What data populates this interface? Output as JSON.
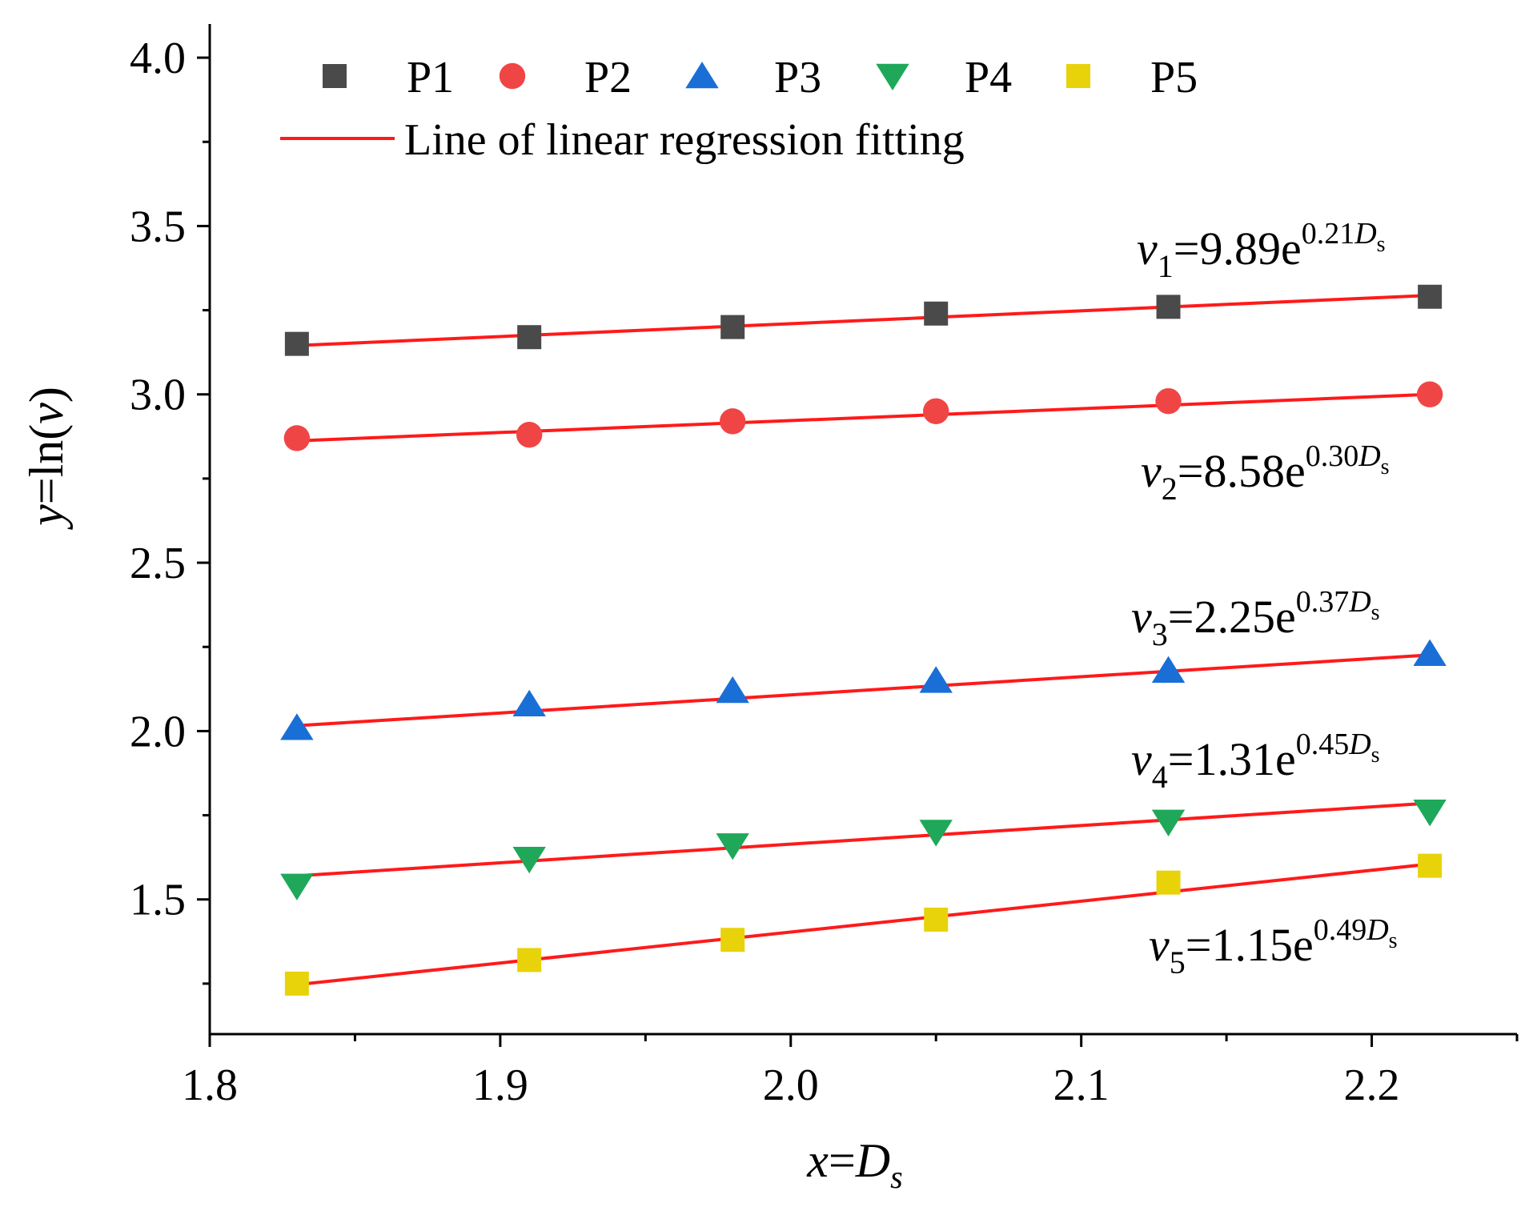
{
  "chart_data": {
    "type": "scatter",
    "title": "",
    "xlabel": {
      "var": "x",
      "eq": "=",
      "sym": "D",
      "sub": "s"
    },
    "ylabel": {
      "var": "y",
      "mid": "=ln(",
      "arg": "v",
      "end": ")"
    },
    "xlim": [
      1.8,
      2.25
    ],
    "ylim": [
      1.1,
      4.1
    ],
    "x_ticks": [
      1.8,
      1.9,
      2.0,
      2.1,
      2.2
    ],
    "x_tick_labels": [
      "1.8",
      "1.9",
      "2.0",
      "2.1",
      "2.2"
    ],
    "y_ticks": [
      1.5,
      2.0,
      2.5,
      3.0,
      3.5,
      4.0
    ],
    "y_tick_labels": [
      "1.5",
      "2.0",
      "2.5",
      "3.0",
      "3.5",
      "4.0"
    ],
    "x": [
      1.83,
      1.91,
      1.98,
      2.05,
      2.13,
      2.22
    ],
    "series": [
      {
        "name": "P1",
        "marker": "square",
        "color": "#4a4a4a",
        "values": [
          3.15,
          3.17,
          3.2,
          3.24,
          3.26,
          3.29
        ],
        "fit": [
          3.145,
          3.294
        ],
        "equation": {
          "v": "v",
          "sub": "1",
          "coef": "=9.89e",
          "exp": "0.21",
          "D": "D",
          "s": "s"
        }
      },
      {
        "name": "P2",
        "marker": "circle",
        "color": "#f04545",
        "values": [
          2.87,
          2.88,
          2.92,
          2.95,
          2.98,
          3.0
        ],
        "fit": [
          2.862,
          3.0
        ],
        "equation": {
          "v": "v",
          "sub": "2",
          "coef": "=8.58e",
          "exp": "0.30",
          "D": "D",
          "s": "s"
        }
      },
      {
        "name": "P3",
        "marker": "triangle-up",
        "color": "#1a6fd6",
        "values": [
          2.01,
          2.08,
          2.12,
          2.15,
          2.18,
          2.23
        ],
        "fit": [
          2.016,
          2.226
        ],
        "equation": {
          "v": "v",
          "sub": "3",
          "coef": "=2.25e",
          "exp": "0.37",
          "D": "D",
          "s": "s"
        }
      },
      {
        "name": "P4",
        "marker": "triangle-down",
        "color": "#1fa85a",
        "values": [
          1.54,
          1.62,
          1.66,
          1.7,
          1.73,
          1.76
        ],
        "fit": [
          1.57,
          1.786
        ],
        "equation": {
          "v": "v",
          "sub": "4",
          "coef": "=1.31e",
          "exp": "0.45",
          "D": "D",
          "s": "s"
        }
      },
      {
        "name": "P5",
        "marker": "square",
        "color": "#e8d20a",
        "values": [
          1.25,
          1.32,
          1.38,
          1.44,
          1.55,
          1.6
        ],
        "fit": [
          1.247,
          1.605
        ],
        "equation": {
          "v": "v",
          "sub": "5",
          "coef": "=1.15e",
          "exp": "0.49",
          "D": "D",
          "s": "s"
        }
      }
    ],
    "fit_line": {
      "label": "Line of linear regression fitting",
      "color": "#ff1a1a"
    },
    "legend": "top-left"
  }
}
